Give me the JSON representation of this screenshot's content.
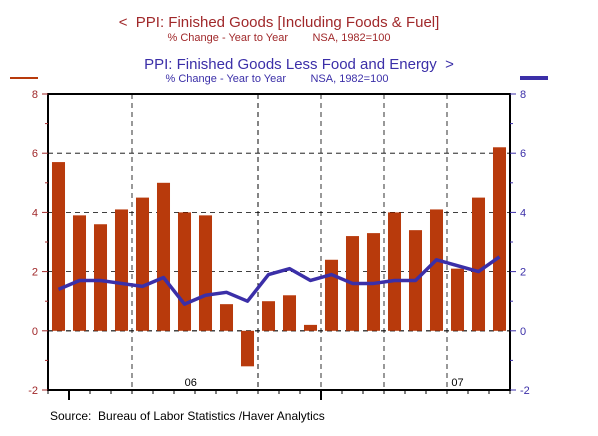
{
  "chart_data": {
    "type": "bar+line",
    "title_left": "<  PPI: Finished Goods [Including Foods & Fuel]",
    "subtitle_left": "% Change - Year to Year        NSA, 1982=100",
    "title_right": "PPI: Finished Goods Less Food and Energy  >",
    "subtitle_right": "% Change - Year to Year        NSA, 1982=100",
    "source": "Source:  Bureau of Labor Statistics /Haver Analytics",
    "x_labels": [
      "06",
      "07"
    ],
    "ylim": [
      -2,
      8
    ],
    "yticks": [
      -2,
      0,
      2,
      4,
      6,
      8
    ],
    "colors": {
      "bars": "#b83a0c",
      "line": "#3b2fa8",
      "left_axis": "#a0282a",
      "right_axis": "#3b2fa8"
    },
    "series": [
      {
        "name": "PPI: Finished Goods [Including Foods & Fuel]",
        "type": "bar",
        "axis": "left",
        "values": [
          5.7,
          3.9,
          3.6,
          4.1,
          4.5,
          5.0,
          4.0,
          3.9,
          0.9,
          -1.2,
          1.0,
          1.2,
          0.2,
          2.4,
          3.2,
          3.3,
          4.0,
          3.4,
          4.1,
          2.1,
          4.5,
          6.2
        ]
      },
      {
        "name": "PPI: Finished Goods Less Food and Energy",
        "type": "line",
        "axis": "right",
        "values": [
          1.4,
          1.7,
          1.7,
          1.6,
          1.5,
          1.8,
          0.9,
          1.2,
          1.3,
          1.0,
          1.9,
          2.1,
          1.7,
          1.9,
          1.6,
          1.6,
          1.7,
          1.7,
          2.4,
          2.2,
          2.0,
          2.5
        ]
      }
    ],
    "grid": true,
    "legend": "top (titles with arrows)"
  }
}
